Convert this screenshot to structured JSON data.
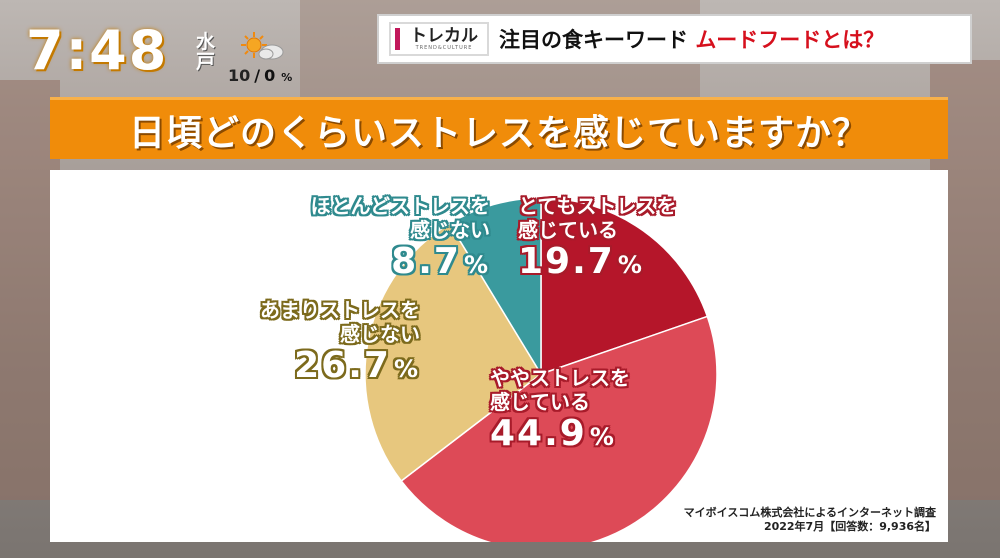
{
  "clock": "7:48",
  "location": "水戸",
  "weather": {
    "icon": "sun-cloud-icon",
    "temp_high": "10",
    "separator": "/",
    "temp_low": "0",
    "precip_unit": "%"
  },
  "headline": {
    "logo_main": "トレカル",
    "logo_sub": "TREND&CULTURE",
    "text": "注目の食キーワード ",
    "accent": "ムードフードとは？"
  },
  "question": "日頃どのくらいストレスを感じていますか？",
  "source_line1": "マイボイスコム株式会社によるインターネット調査",
  "source_line2": "2022年7月【回答数：9,936名】",
  "chart_data": {
    "type": "pie",
    "title": "日頃どのくらいストレスを感じていますか？",
    "slices": [
      {
        "label_line1": "とてもストレスを",
        "label_line2": "感じている",
        "value": 19.7,
        "display": "19.7",
        "color": "#b5162a"
      },
      {
        "label_line1": "ややストレスを",
        "label_line2": "感じている",
        "value": 44.9,
        "display": "44.9",
        "color": "#dd4a57"
      },
      {
        "label_line1": "あまりストレスを",
        "label_line2": "感じない",
        "value": 26.7,
        "display": "26.7",
        "color": "#e7c77e"
      },
      {
        "label_line1": "ほとんどストレスを",
        "label_line2": "感じない",
        "value": 8.7,
        "display": "8.7",
        "color": "#3a9a9e"
      }
    ],
    "unit": "%",
    "start_angle_deg": 0,
    "direction": "clockwise"
  }
}
